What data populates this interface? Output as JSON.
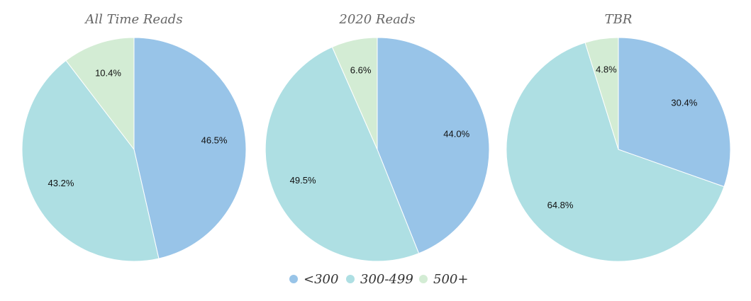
{
  "colors": {
    "lt300": "#98c4e8",
    "r300_499": "#aedfe3",
    "gt500": "#d3ecd4"
  },
  "legend": [
    {
      "label": "<300",
      "color_key": "lt300"
    },
    {
      "label": "300-499",
      "color_key": "r300_499"
    },
    {
      "label": "500+",
      "color_key": "gt500"
    }
  ],
  "chart_data": [
    {
      "type": "pie",
      "title": "All Time Reads",
      "categories": [
        "<300",
        "300-499",
        "500+"
      ],
      "values": [
        46.5,
        43.2,
        10.4
      ],
      "labels": [
        "46.5%",
        "43.2%",
        "10.4%"
      ]
    },
    {
      "type": "pie",
      "title": "2020 Reads",
      "categories": [
        "<300",
        "300-499",
        "500+"
      ],
      "values": [
        44.0,
        49.5,
        6.6
      ],
      "labels": [
        "44.0%",
        "49.5%",
        "6.6%"
      ]
    },
    {
      "type": "pie",
      "title": "TBR",
      "categories": [
        "<300",
        "300-499",
        "500+"
      ],
      "values": [
        30.4,
        64.8,
        4.8
      ],
      "labels": [
        "30.4%",
        "64.8%",
        "4.8%"
      ]
    }
  ]
}
